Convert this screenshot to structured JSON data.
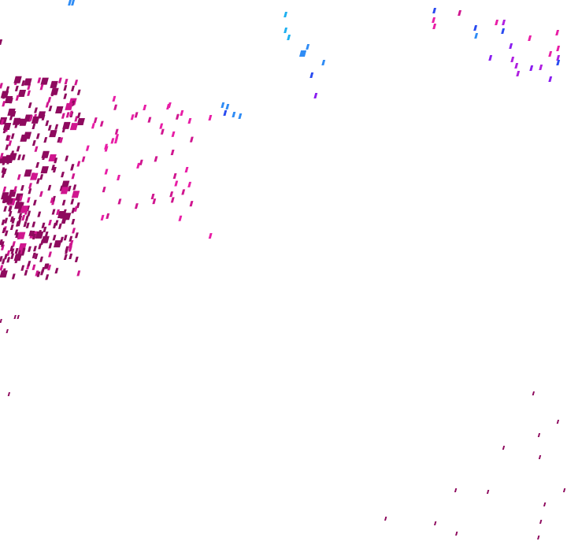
{
  "map": {
    "background": "#ffffff",
    "palette": {
      "dark_magenta": "#8e0a5e",
      "magenta": "#d0168f",
      "pink": "#e81ea6",
      "violet": "#b020e0",
      "purple": "#8a1ef0",
      "blue": "#2a4bf0",
      "sky_blue": "#2f8cf5",
      "cyan": "#1fb0f0"
    }
  }
}
